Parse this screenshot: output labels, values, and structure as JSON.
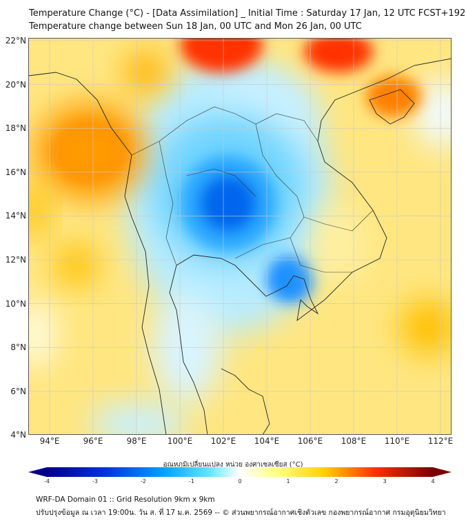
{
  "title": {
    "line1": "Temperature Change (°C) - [Data Assimilation] _ Initial Time : Saturday 17 Jan, 12 UTC FCST+192",
    "line2": "Temperature change between Sun 18 Jan, 00 UTC and Mon 26 Jan, 00 UTC"
  },
  "map": {
    "lat_labels": [
      "22°N",
      "20°N",
      "18°N",
      "16°N",
      "14°N",
      "12°N",
      "10°N",
      "8°N",
      "6°N",
      "4°N"
    ],
    "lon_labels": [
      "94°E",
      "96°E",
      "98°E",
      "100°E",
      "102°E",
      "104°E",
      "106°E",
      "108°E",
      "110°E",
      "112°E"
    ],
    "colors": {
      "cold_max": "#00008b",
      "cold": "#0090ff",
      "cool": "#9fe8ff",
      "neutral": "#ffffff",
      "warm": "#ffe870",
      "hot": "#ff8c00",
      "hot_max": "#7a0000"
    }
  },
  "colorbar": {
    "title": "อุณหภูมิเปลี่ยนแปลง หน่วย องศาเซลเซียส (°C)",
    "ticks": [
      "-4",
      "-3",
      "-2",
      "-1",
      "0",
      "1",
      "2",
      "3",
      "4"
    ],
    "range": [
      -4,
      4
    ]
  },
  "footer": {
    "line1": "WRF-DA Domain 01 :: Grid Resolution 9km x 9km",
    "line2": "ปรับปรุงข้อมูล ณ เวลา 19:00น. วัน ส. ที่ 17 ม.ค. 2569 -- © ส่วนพยากรณ์อากาศเชิงตัวเลข กองพยากรณ์อากาศ กรมอุตุนิยมวิทยา"
  }
}
